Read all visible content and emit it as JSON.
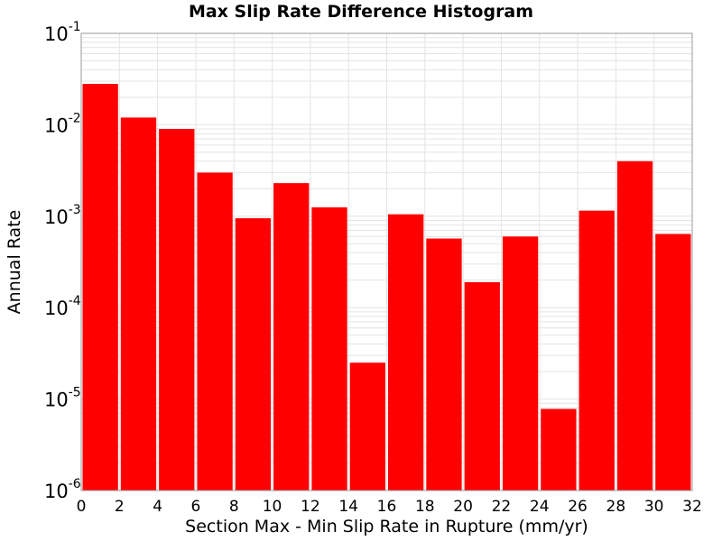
{
  "chart_data": {
    "type": "bar",
    "title": "Max Slip Rate Difference Histogram",
    "xlabel": "Section Max - Min Slip Rate in Rupture (mm/yr)",
    "ylabel": "Annual Rate",
    "yscale": "log",
    "xlim": [
      0,
      32
    ],
    "ylim": [
      1e-06,
      0.1
    ],
    "xticks": [
      0,
      2,
      4,
      6,
      8,
      10,
      12,
      14,
      16,
      18,
      20,
      22,
      24,
      26,
      28,
      30,
      32
    ],
    "ytick_exponents": [
      -1,
      -2,
      -3,
      -4,
      -5,
      -6
    ],
    "ytick_base": "10",
    "grid": true,
    "colors": {
      "bar": "#ff0000",
      "grid": "#e4e4e4",
      "border": "#999999"
    },
    "bins": [
      {
        "x_start": 0,
        "x_end": 2,
        "value": 0.028
      },
      {
        "x_start": 2,
        "x_end": 4,
        "value": 0.012
      },
      {
        "x_start": 4,
        "x_end": 6,
        "value": 0.009
      },
      {
        "x_start": 6,
        "x_end": 8,
        "value": 0.003
      },
      {
        "x_start": 8,
        "x_end": 10,
        "value": 0.00095
      },
      {
        "x_start": 10,
        "x_end": 12,
        "value": 0.0023
      },
      {
        "x_start": 12,
        "x_end": 14,
        "value": 0.00125
      },
      {
        "x_start": 14,
        "x_end": 16,
        "value": 2.5e-05
      },
      {
        "x_start": 16,
        "x_end": 18,
        "value": 0.00105
      },
      {
        "x_start": 18,
        "x_end": 20,
        "value": 0.00057
      },
      {
        "x_start": 20,
        "x_end": 22,
        "value": 0.00019
      },
      {
        "x_start": 22,
        "x_end": 24,
        "value": 0.0006
      },
      {
        "x_start": 24,
        "x_end": 26,
        "value": 7.8e-06
      },
      {
        "x_start": 26,
        "x_end": 28,
        "value": 0.00115
      },
      {
        "x_start": 28,
        "x_end": 30,
        "value": 0.004
      },
      {
        "x_start": 30,
        "x_end": 32,
        "value": 0.00064
      }
    ]
  }
}
